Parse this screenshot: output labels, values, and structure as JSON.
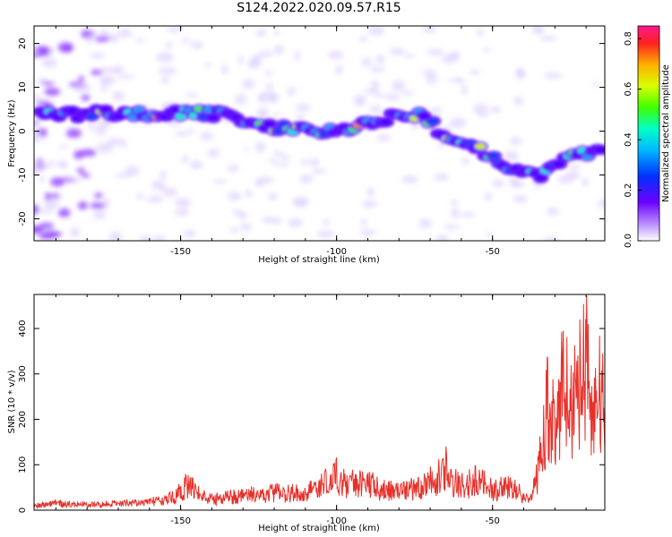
{
  "figure": {
    "title": "S124.2022.020.09.57.R15"
  },
  "colors": {
    "snr_line": "#e8302a",
    "ridge_low": "#7a00ff",
    "ridge_high": "#ff2a2a"
  },
  "chart_data": [
    {
      "type": "heatmap",
      "name": "spectrogram",
      "xlabel": "Height of straight line (km)",
      "ylabel": "Frequency (Hz)",
      "xlim": [
        -197,
        -14
      ],
      "ylim": [
        -25,
        24
      ],
      "x_ticks": [
        -150,
        -100,
        -50
      ],
      "y_ticks": [
        -20,
        -10,
        0,
        10,
        20
      ],
      "colorbar": {
        "label": "Normalized spectral amplitude",
        "range": [
          0,
          0.85
        ],
        "ticks": [
          0.0,
          0.2,
          0.4,
          0.6,
          0.8
        ],
        "colormap": "rainbow-purple-to-magenta"
      },
      "ridge": {
        "x": [
          -195,
          -180,
          -165,
          -150,
          -140,
          -132,
          -125,
          -120,
          -110,
          -100,
          -95,
          -85,
          -75,
          -70,
          -65,
          -60,
          -55,
          -50,
          -45,
          -40,
          -35,
          -30,
          -25,
          -20,
          -14
        ],
        "y": [
          4,
          4,
          4,
          4,
          4,
          3,
          1,
          1,
          0,
          0,
          1,
          3,
          4,
          2,
          -1,
          -3,
          -4,
          -6,
          -8,
          -9,
          -10,
          -8,
          -6,
          -5,
          -3
        ]
      }
    },
    {
      "type": "line",
      "name": "snr",
      "xlabel": "Height of straight line (km)",
      "ylabel": "SNR (10 * v/v)",
      "xlim": [
        -197,
        -14
      ],
      "ylim": [
        0,
        475
      ],
      "x_ticks": [
        -150,
        -100,
        -50
      ],
      "y_ticks": [
        0,
        100,
        200,
        300,
        400
      ],
      "series": [
        {
          "x": [
            -197,
            -190,
            -180,
            -170,
            -160,
            -152,
            -148,
            -145,
            -140,
            -130,
            -120,
            -110,
            -103,
            -100,
            -97,
            -92,
            -85,
            -80,
            -75,
            -70,
            -66,
            -65,
            -62,
            -58,
            -55,
            -50,
            -45,
            -40,
            -38,
            -35,
            -32,
            -30,
            -27,
            -25,
            -22,
            -20,
            -18,
            -16,
            -14
          ],
          "y": [
            12,
            18,
            15,
            18,
            22,
            35,
            70,
            50,
            30,
            40,
            48,
            45,
            75,
            100,
            65,
            80,
            55,
            50,
            60,
            80,
            95,
            120,
            75,
            70,
            85,
            55,
            65,
            40,
            20,
            120,
            300,
            200,
            380,
            260,
            350,
            440,
            200,
            330,
            260
          ]
        }
      ]
    }
  ]
}
